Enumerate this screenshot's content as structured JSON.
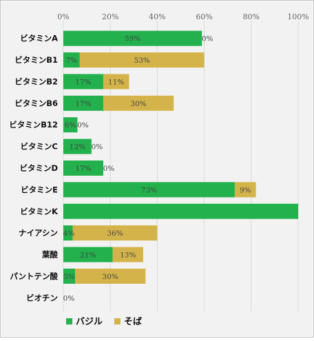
{
  "chart_data": {
    "type": "bar",
    "orientation": "horizontal",
    "stacked": true,
    "title": "",
    "xlabel": "",
    "ylabel": "",
    "xlim": [
      0,
      100
    ],
    "x_ticks": [
      "0%",
      "20%",
      "40%",
      "60%",
      "80%",
      "100%"
    ],
    "grid": true,
    "legend_position": "bottom",
    "categories": [
      "ビタミンA",
      "ビタミンB1",
      "ビタミンB2",
      "ビタミンB6",
      "ビタミンB12",
      "ビタミンC",
      "ビタミンD",
      "ビタミンE",
      "ビタミンK",
      "ナイアシン",
      "葉酸",
      "パントテン酸",
      "ビオチン"
    ],
    "series": [
      {
        "name": "バジル",
        "color": "#22b14c",
        "values": [
          59,
          7,
          17,
          17,
          6,
          12,
          17,
          73,
          100,
          4,
          21,
          5,
          0
        ],
        "labels": [
          "59%",
          "7%",
          "17%",
          "17%",
          "6%",
          "12%",
          "17%",
          "73%",
          "",
          "4%",
          "21%",
          "5%",
          "0%"
        ]
      },
      {
        "name": "そば",
        "color": "#d4b44a",
        "values": [
          0,
          53,
          11,
          30,
          0,
          0,
          0,
          9,
          0,
          36,
          13,
          30,
          0
        ],
        "labels": [
          "0%",
          "53%",
          "11%",
          "30%",
          "0%",
          "0%",
          "0%",
          "9%",
          "",
          "36%",
          "13%",
          "30%",
          ""
        ]
      }
    ]
  }
}
